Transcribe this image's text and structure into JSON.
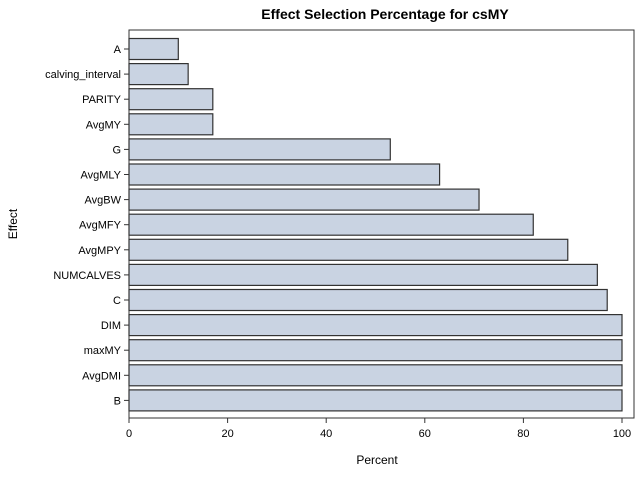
{
  "chart_data": {
    "type": "bar",
    "orientation": "horizontal",
    "title": "Effect Selection Percentage for csMY",
    "xlabel": "Percent",
    "ylabel": "Effect",
    "xlim": [
      0,
      100
    ],
    "xticks": [
      0,
      20,
      40,
      60,
      80,
      100
    ],
    "grid": false,
    "categories": [
      "A",
      "calving_interval",
      "PARITY",
      "AvgMY",
      "G",
      "AvgMLY",
      "AvgBW",
      "AvgMFY",
      "AvgMPY",
      "NUMCALVES",
      "C",
      "DIM",
      "maxMY",
      "AvgDMI",
      "B"
    ],
    "values": [
      10,
      12,
      17,
      17,
      53,
      63,
      71,
      82,
      89,
      95,
      97,
      100,
      100,
      100,
      100
    ],
    "bar_fill": "#c9d3e2",
    "bar_stroke": "#333333"
  }
}
